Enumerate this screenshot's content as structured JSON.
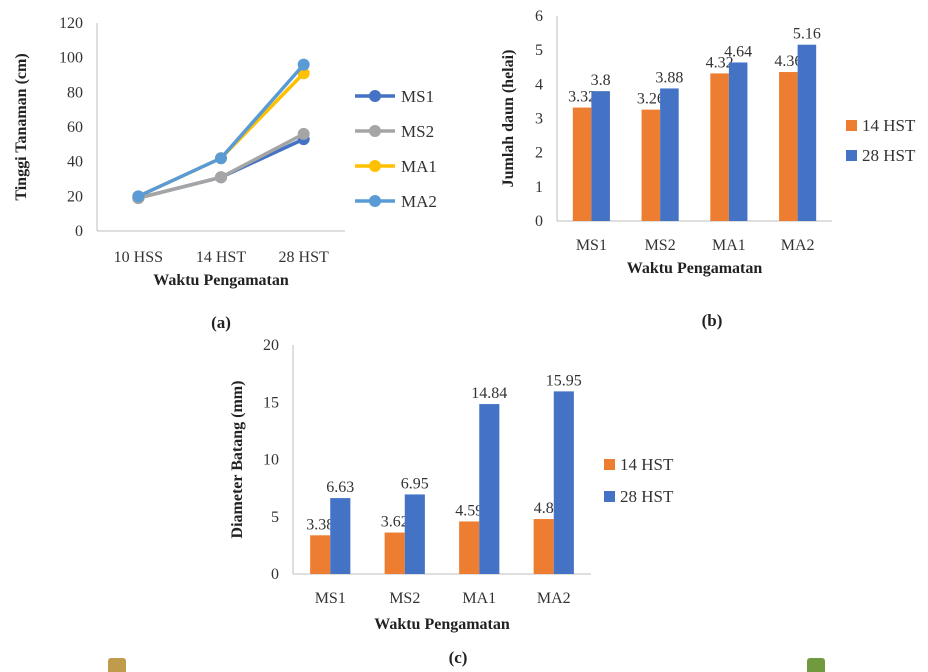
{
  "colors": {
    "orange": "#ED7D31",
    "blue": "#4472C4",
    "gray": "#A5A5A5",
    "yellow": "#FFC000",
    "lightblue": "#5B9BD5",
    "deco_left": "#BF9B4B",
    "deco_right": "#6F9A3E"
  },
  "chart_data": [
    {
      "id": "a",
      "type": "line",
      "panel_label": "(a)",
      "xlabel": "Waktu Pengamatan",
      "ylabel": "Tinggi Tanaman (cm)",
      "categories": [
        "10 HSS",
        "14 HST",
        "28 HST"
      ],
      "ylim": [
        0,
        120
      ],
      "yticks": [
        "0",
        "20",
        "40",
        "60",
        "80",
        "100",
        "120"
      ],
      "legend": "right",
      "grid": false,
      "series": [
        {
          "name": "MS1",
          "color": "#4472C4",
          "values": [
            19,
            31,
            53
          ]
        },
        {
          "name": "MS2",
          "color": "#A5A5A5",
          "values": [
            19,
            31,
            56
          ]
        },
        {
          "name": "MA1",
          "color": "#FFC000",
          "values": [
            20,
            42,
            91
          ]
        },
        {
          "name": "MA2",
          "color": "#5B9BD5",
          "values": [
            20,
            42,
            96
          ]
        }
      ]
    },
    {
      "id": "b",
      "type": "bar",
      "panel_label": "(b)",
      "xlabel": "Waktu Pengamatan",
      "ylabel": "Jumlah daun (helai)",
      "categories": [
        "MS1",
        "MS2",
        "MA1",
        "MA2"
      ],
      "ylim": [
        0,
        6
      ],
      "yticks": [
        "0",
        "1",
        "2",
        "3",
        "4",
        "5",
        "6"
      ],
      "legend": "right",
      "grid": false,
      "series": [
        {
          "name": "14 HST",
          "color": "#ED7D31",
          "values": [
            3.32,
            3.26,
            4.32,
            4.36
          ],
          "labels": [
            "3.32",
            "3.26",
            "4.32",
            "4.36"
          ]
        },
        {
          "name": "28 HST",
          "color": "#4472C4",
          "values": [
            3.8,
            3.88,
            4.64,
            5.16
          ],
          "labels": [
            "3.8",
            "3.88",
            "4.64",
            "5.16"
          ]
        }
      ]
    },
    {
      "id": "c",
      "type": "bar",
      "panel_label": "(c)",
      "xlabel": "Waktu Pengamatan",
      "ylabel": "Diameter Batang (mm)",
      "categories": [
        "MS1",
        "MS2",
        "MA1",
        "MA2"
      ],
      "ylim": [
        0,
        20
      ],
      "yticks": [
        "0",
        "5",
        "10",
        "15",
        "20"
      ],
      "legend": "right",
      "grid": false,
      "series": [
        {
          "name": "14 HST",
          "color": "#ED7D31",
          "values": [
            3.38,
            3.62,
            4.59,
            4.8
          ],
          "labels": [
            "3.38",
            "3.62",
            "4.59",
            "4.8"
          ]
        },
        {
          "name": "28 HST",
          "color": "#4472C4",
          "values": [
            6.63,
            6.95,
            14.84,
            15.95
          ],
          "labels": [
            "6.63",
            "6.95",
            "14.84",
            "15.95"
          ]
        }
      ]
    }
  ]
}
